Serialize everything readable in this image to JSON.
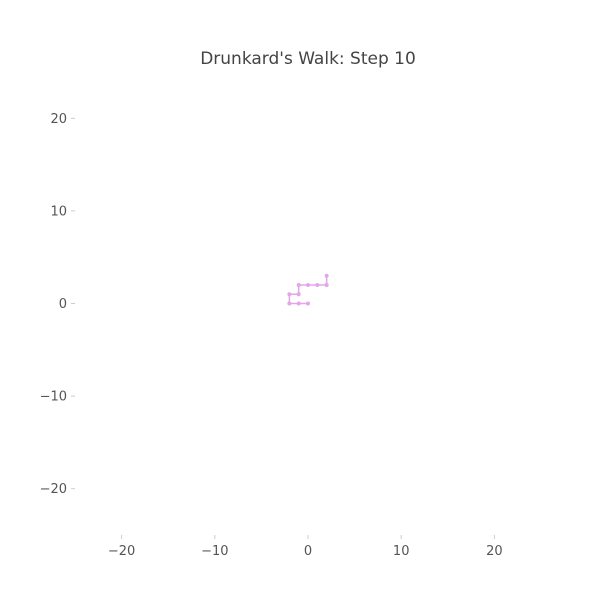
{
  "chart_data": {
    "type": "line",
    "title": "Drunkard's Walk: Step 10",
    "xlabel": "",
    "ylabel": "",
    "xlim": [
      -25,
      25
    ],
    "ylim": [
      -25,
      25
    ],
    "x_ticks": [
      -20,
      -10,
      0,
      10,
      20
    ],
    "y_ticks": [
      20,
      10,
      0,
      -10,
      -20
    ],
    "x_tick_labels": [
      "−20",
      "−10",
      "0",
      "10",
      "20"
    ],
    "y_tick_labels": [
      "20",
      "10",
      "0",
      "−10",
      "−20"
    ],
    "grid": false,
    "series": [
      {
        "color": "#e4a6ea",
        "x": [
          0,
          -1,
          -2,
          -2,
          -1,
          -1,
          0,
          1,
          2,
          2,
          2
        ],
        "y": [
          0,
          0,
          0,
          1,
          1,
          2,
          2,
          2,
          2,
          2,
          3
        ]
      }
    ]
  }
}
